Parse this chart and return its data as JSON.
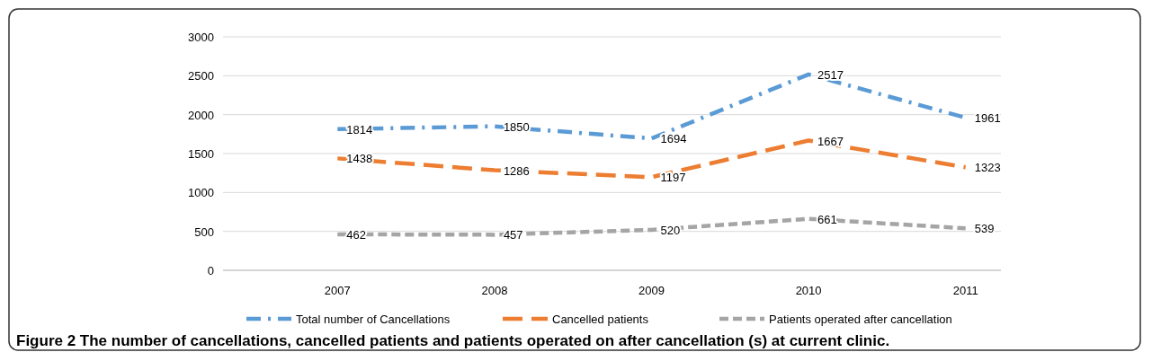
{
  "chart_data": {
    "type": "line",
    "categories": [
      "2007",
      "2008",
      "2009",
      "2010",
      "2011"
    ],
    "series": [
      {
        "name": "Total number of Cancellations",
        "color": "#5b9bd5",
        "line_style": "dashdot",
        "values": [
          1814,
          1850,
          1694,
          2517,
          1961
        ]
      },
      {
        "name": "Cancelled patients",
        "color": "#ed7d31",
        "line_style": "dashed",
        "values": [
          1438,
          1286,
          1197,
          1667,
          1323
        ]
      },
      {
        "name": "Patients operated after cancellation",
        "color": "#a5a5a5",
        "line_style": "dotted",
        "values": [
          462,
          457,
          520,
          661,
          539
        ]
      }
    ],
    "ylim": [
      0,
      3000
    ],
    "yticks": [
      0,
      500,
      1000,
      1500,
      2000,
      2500,
      3000
    ],
    "grid": "y",
    "legend": "bottom",
    "marker": "none",
    "data_labels": true,
    "annotations": [
      "Figure 2 The number of cancellations, cancelled patients and patients operated on after cancellation (s) at current clinic."
    ]
  }
}
